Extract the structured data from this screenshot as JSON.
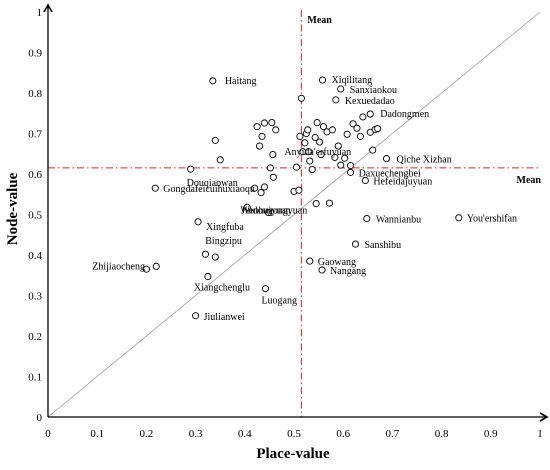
{
  "chart_data": {
    "type": "scatter",
    "xlabel": "Place-value",
    "ylabel": "Node-value",
    "xlim": [
      0,
      1
    ],
    "ylim": [
      0,
      1
    ],
    "x_ticks": [
      "0",
      "0.1",
      "0.2",
      "0.3",
      "0.4",
      "0.5",
      "0.6",
      "0.7",
      "0.8",
      "0.9",
      "1"
    ],
    "y_ticks": [
      "0",
      "0.1",
      "0.2",
      "0.3",
      "0.4",
      "0.5",
      "0.6",
      "0.7",
      "0.8",
      "0.9",
      "1"
    ],
    "grid": false,
    "diagonal_reference": true,
    "mean": {
      "x": 0.515,
      "y": 0.615,
      "x_label": "Mean",
      "y_label": "Mean"
    },
    "colors": {
      "mean_line": "#d62728",
      "diagonal": "#9e9e9e",
      "points": "#000000"
    },
    "points": [
      {
        "x": 0.335,
        "y": 0.83,
        "label": "Haitang"
      },
      {
        "x": 0.558,
        "y": 0.832,
        "label": "Xiqilitang"
      },
      {
        "x": 0.595,
        "y": 0.81,
        "label": "Sanxiaokou"
      },
      {
        "x": 0.585,
        "y": 0.783,
        "label": "Kexuedadao"
      },
      {
        "x": 0.655,
        "y": 0.748,
        "label": "Dadongmen"
      },
      {
        "x": 0.688,
        "y": 0.638,
        "label": "Qiche Xizhan"
      },
      {
        "x": 0.615,
        "y": 0.604,
        "label": "Daxuechengbei"
      },
      {
        "x": 0.645,
        "y": 0.584,
        "label": "Hefeidajuyuan"
      },
      {
        "x": 0.452,
        "y": 0.615,
        "label": "Anyida'erfuyuan"
      },
      {
        "x": 0.29,
        "y": 0.612,
        "label": "Douqiaowan"
      },
      {
        "x": 0.218,
        "y": 0.565,
        "label": "Gongdafeicuihuxiaoqu"
      },
      {
        "x": 0.448,
        "y": 0.505,
        "label": "Wenhuiyuan"
      },
      {
        "x": 0.545,
        "y": 0.527,
        "label": "Jindougongyuan"
      },
      {
        "x": 0.305,
        "y": 0.482,
        "label": "Xingfuba"
      },
      {
        "x": 0.648,
        "y": 0.49,
        "label": "Wannianbu"
      },
      {
        "x": 0.835,
        "y": 0.492,
        "label": "You'ershifan"
      },
      {
        "x": 0.625,
        "y": 0.427,
        "label": "Sanshibu"
      },
      {
        "x": 0.34,
        "y": 0.395,
        "label": "Bingzipu"
      },
      {
        "x": 0.22,
        "y": 0.372,
        "label": "Zhijiaocheng"
      },
      {
        "x": 0.532,
        "y": 0.385,
        "label": "Gaowang"
      },
      {
        "x": 0.557,
        "y": 0.363,
        "label": "Nangang"
      },
      {
        "x": 0.325,
        "y": 0.347,
        "label": "Xiangchenglu"
      },
      {
        "x": 0.442,
        "y": 0.317,
        "label": "Luogang"
      },
      {
        "x": 0.3,
        "y": 0.25,
        "label": "Jiulianwei"
      },
      {
        "x": 0.2,
        "y": 0.365,
        "label": ""
      },
      {
        "x": 0.32,
        "y": 0.402,
        "label": ""
      },
      {
        "x": 0.34,
        "y": 0.683,
        "label": ""
      },
      {
        "x": 0.35,
        "y": 0.635,
        "label": ""
      },
      {
        "x": 0.405,
        "y": 0.518,
        "label": ""
      },
      {
        "x": 0.42,
        "y": 0.565,
        "label": ""
      },
      {
        "x": 0.425,
        "y": 0.717,
        "label": ""
      },
      {
        "x": 0.43,
        "y": 0.669,
        "label": ""
      },
      {
        "x": 0.433,
        "y": 0.554,
        "label": ""
      },
      {
        "x": 0.435,
        "y": 0.693,
        "label": ""
      },
      {
        "x": 0.44,
        "y": 0.726,
        "label": ""
      },
      {
        "x": 0.44,
        "y": 0.568,
        "label": ""
      },
      {
        "x": 0.455,
        "y": 0.727,
        "label": ""
      },
      {
        "x": 0.457,
        "y": 0.648,
        "label": ""
      },
      {
        "x": 0.458,
        "y": 0.592,
        "label": ""
      },
      {
        "x": 0.463,
        "y": 0.709,
        "label": ""
      },
      {
        "x": 0.5,
        "y": 0.557,
        "label": ""
      },
      {
        "x": 0.505,
        "y": 0.617,
        "label": ""
      },
      {
        "x": 0.51,
        "y": 0.56,
        "label": ""
      },
      {
        "x": 0.512,
        "y": 0.693,
        "label": ""
      },
      {
        "x": 0.515,
        "y": 0.787,
        "label": ""
      },
      {
        "x": 0.518,
        "y": 0.655,
        "label": ""
      },
      {
        "x": 0.522,
        "y": 0.677,
        "label": ""
      },
      {
        "x": 0.525,
        "y": 0.7,
        "label": ""
      },
      {
        "x": 0.528,
        "y": 0.709,
        "label": ""
      },
      {
        "x": 0.53,
        "y": 0.655,
        "label": ""
      },
      {
        "x": 0.532,
        "y": 0.632,
        "label": ""
      },
      {
        "x": 0.537,
        "y": 0.611,
        "label": ""
      },
      {
        "x": 0.543,
        "y": 0.69,
        "label": ""
      },
      {
        "x": 0.547,
        "y": 0.727,
        "label": ""
      },
      {
        "x": 0.552,
        "y": 0.679,
        "label": ""
      },
      {
        "x": 0.555,
        "y": 0.648,
        "label": ""
      },
      {
        "x": 0.56,
        "y": 0.717,
        "label": ""
      },
      {
        "x": 0.567,
        "y": 0.704,
        "label": ""
      },
      {
        "x": 0.572,
        "y": 0.528,
        "label": ""
      },
      {
        "x": 0.578,
        "y": 0.709,
        "label": ""
      },
      {
        "x": 0.583,
        "y": 0.641,
        "label": ""
      },
      {
        "x": 0.59,
        "y": 0.669,
        "label": ""
      },
      {
        "x": 0.595,
        "y": 0.622,
        "label": ""
      },
      {
        "x": 0.603,
        "y": 0.639,
        "label": ""
      },
      {
        "x": 0.608,
        "y": 0.698,
        "label": ""
      },
      {
        "x": 0.615,
        "y": 0.621,
        "label": ""
      },
      {
        "x": 0.62,
        "y": 0.724,
        "label": ""
      },
      {
        "x": 0.628,
        "y": 0.713,
        "label": ""
      },
      {
        "x": 0.635,
        "y": 0.693,
        "label": ""
      },
      {
        "x": 0.64,
        "y": 0.741,
        "label": ""
      },
      {
        "x": 0.655,
        "y": 0.703,
        "label": ""
      },
      {
        "x": 0.66,
        "y": 0.659,
        "label": ""
      },
      {
        "x": 0.665,
        "y": 0.71,
        "label": ""
      },
      {
        "x": 0.67,
        "y": 0.712,
        "label": ""
      }
    ]
  }
}
